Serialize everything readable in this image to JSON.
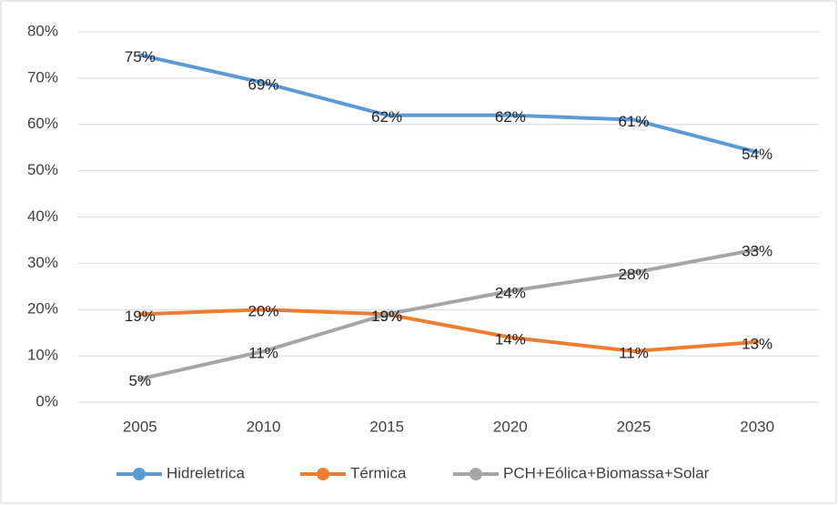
{
  "chart_data": {
    "type": "line",
    "categories": [
      "2005",
      "2010",
      "2015",
      "2020",
      "2025",
      "2030"
    ],
    "series": [
      {
        "name": "Hidreletrica",
        "color": "#5b9bd5",
        "values": [
          75,
          69,
          62,
          62,
          61,
          54
        ],
        "value_labels": [
          "75%",
          "69%",
          "62%",
          "62%",
          "61%",
          "54%"
        ]
      },
      {
        "name": "Térmica",
        "color": "#ed7d31",
        "values": [
          19,
          20,
          19,
          14,
          11,
          13
        ],
        "value_labels": [
          "19%",
          "20%",
          "19%",
          "14%",
          "11%",
          "13%"
        ]
      },
      {
        "name": "PCH+Eólica+Biomassa+Solar",
        "color": "#a5a5a5",
        "values": [
          5,
          11,
          19,
          24,
          28,
          33
        ],
        "value_labels": [
          "5%",
          "11%",
          "19%",
          "24%",
          "28%",
          "33%"
        ]
      }
    ],
    "ylim": [
      0,
      80
    ],
    "yticks": [
      {
        "value": 0,
        "label": "0%"
      },
      {
        "value": 10,
        "label": "10%"
      },
      {
        "value": 20,
        "label": "20%"
      },
      {
        "value": 30,
        "label": "30%"
      },
      {
        "value": 40,
        "label": "40%"
      },
      {
        "value": 50,
        "label": "50%"
      },
      {
        "value": 60,
        "label": "60%"
      },
      {
        "value": 70,
        "label": "70%"
      },
      {
        "value": 80,
        "label": "80%"
      }
    ],
    "grid": true,
    "legend": "bottom"
  }
}
